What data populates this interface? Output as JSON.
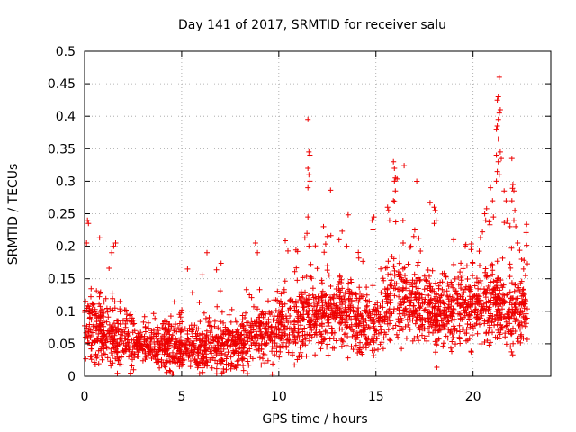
{
  "chart_data": {
    "type": "scatter",
    "title": "Day 141 of 2017, SRMTID for receiver salu",
    "xlabel": "GPS time / hours",
    "ylabel": "SRMTID / TECUs",
    "xlim": [
      0,
      24
    ],
    "ylim": [
      0,
      0.5
    ],
    "xticks": [
      0,
      5,
      10,
      15,
      20
    ],
    "yticks": [
      0,
      0.05,
      0.1,
      0.15,
      0.2,
      0.25,
      0.3,
      0.35,
      0.4,
      0.45,
      0.5
    ],
    "grid": true,
    "legend": "none",
    "marker": "+",
    "color": "#ee0000",
    "x_extent": [
      0,
      22.8
    ],
    "level_profile": [
      {
        "x": 0.0,
        "median": 0.075,
        "spread": 0.045
      },
      {
        "x": 1.0,
        "median": 0.065,
        "spread": 0.04
      },
      {
        "x": 2.0,
        "median": 0.055,
        "spread": 0.035
      },
      {
        "x": 3.0,
        "median": 0.05,
        "spread": 0.03
      },
      {
        "x": 4.0,
        "median": 0.045,
        "spread": 0.03
      },
      {
        "x": 5.0,
        "median": 0.045,
        "spread": 0.03
      },
      {
        "x": 6.0,
        "median": 0.04,
        "spread": 0.03
      },
      {
        "x": 7.0,
        "median": 0.05,
        "spread": 0.035
      },
      {
        "x": 8.0,
        "median": 0.045,
        "spread": 0.03
      },
      {
        "x": 9.0,
        "median": 0.065,
        "spread": 0.04
      },
      {
        "x": 10.0,
        "median": 0.07,
        "spread": 0.04
      },
      {
        "x": 11.0,
        "median": 0.08,
        "spread": 0.045
      },
      {
        "x": 12.0,
        "median": 0.09,
        "spread": 0.045
      },
      {
        "x": 13.0,
        "median": 0.1,
        "spread": 0.045
      },
      {
        "x": 14.0,
        "median": 0.085,
        "spread": 0.045
      },
      {
        "x": 15.0,
        "median": 0.08,
        "spread": 0.045
      },
      {
        "x": 16.0,
        "median": 0.115,
        "spread": 0.05
      },
      {
        "x": 17.0,
        "median": 0.11,
        "spread": 0.05
      },
      {
        "x": 18.0,
        "median": 0.1,
        "spread": 0.045
      },
      {
        "x": 19.0,
        "median": 0.095,
        "spread": 0.045
      },
      {
        "x": 20.0,
        "median": 0.105,
        "spread": 0.05
      },
      {
        "x": 21.0,
        "median": 0.11,
        "spread": 0.055
      },
      {
        "x": 22.0,
        "median": 0.1,
        "spread": 0.05
      },
      {
        "x": 22.8,
        "median": 0.1,
        "spread": 0.045
      }
    ],
    "highlighted_points": [
      {
        "x": 0.15,
        "y": 0.24
      },
      {
        "x": 0.2,
        "y": 0.235
      },
      {
        "x": 0.1,
        "y": 0.205
      },
      {
        "x": 1.5,
        "y": 0.2
      },
      {
        "x": 1.6,
        "y": 0.205
      },
      {
        "x": 1.4,
        "y": 0.19
      },
      {
        "x": 5.3,
        "y": 0.165
      },
      {
        "x": 6.3,
        "y": 0.19
      },
      {
        "x": 8.8,
        "y": 0.205
      },
      {
        "x": 8.9,
        "y": 0.19
      },
      {
        "x": 11.5,
        "y": 0.395
      },
      {
        "x": 11.55,
        "y": 0.345
      },
      {
        "x": 11.6,
        "y": 0.34
      },
      {
        "x": 11.5,
        "y": 0.32
      },
      {
        "x": 11.55,
        "y": 0.31
      },
      {
        "x": 11.6,
        "y": 0.3
      },
      {
        "x": 11.5,
        "y": 0.29
      },
      {
        "x": 11.5,
        "y": 0.245
      },
      {
        "x": 11.45,
        "y": 0.22
      },
      {
        "x": 11.55,
        "y": 0.2
      },
      {
        "x": 14.8,
        "y": 0.24
      },
      {
        "x": 14.9,
        "y": 0.245
      },
      {
        "x": 14.85,
        "y": 0.225
      },
      {
        "x": 15.6,
        "y": 0.26
      },
      {
        "x": 15.65,
        "y": 0.255
      },
      {
        "x": 15.7,
        "y": 0.24
      },
      {
        "x": 15.9,
        "y": 0.33
      },
      {
        "x": 15.95,
        "y": 0.32
      },
      {
        "x": 16.0,
        "y": 0.305
      },
      {
        "x": 15.95,
        "y": 0.3
      },
      {
        "x": 16.0,
        "y": 0.285
      },
      {
        "x": 15.9,
        "y": 0.27
      },
      {
        "x": 17.0,
        "y": 0.225
      },
      {
        "x": 16.95,
        "y": 0.215
      },
      {
        "x": 18.0,
        "y": 0.26
      },
      {
        "x": 18.05,
        "y": 0.255
      },
      {
        "x": 18.1,
        "y": 0.24
      },
      {
        "x": 18.0,
        "y": 0.235
      },
      {
        "x": 20.6,
        "y": 0.25
      },
      {
        "x": 20.65,
        "y": 0.24
      },
      {
        "x": 20.9,
        "y": 0.29
      },
      {
        "x": 21.0,
        "y": 0.27
      },
      {
        "x": 21.05,
        "y": 0.245
      },
      {
        "x": 21.2,
        "y": 0.38
      },
      {
        "x": 21.25,
        "y": 0.385
      },
      {
        "x": 21.3,
        "y": 0.365
      },
      {
        "x": 21.2,
        "y": 0.34
      },
      {
        "x": 21.3,
        "y": 0.33
      },
      {
        "x": 21.25,
        "y": 0.315
      },
      {
        "x": 21.35,
        "y": 0.31
      },
      {
        "x": 21.2,
        "y": 0.3
      },
      {
        "x": 21.35,
        "y": 0.46
      },
      {
        "x": 21.3,
        "y": 0.43
      },
      {
        "x": 21.25,
        "y": 0.425
      },
      {
        "x": 21.4,
        "y": 0.41
      },
      {
        "x": 21.35,
        "y": 0.405
      },
      {
        "x": 21.3,
        "y": 0.395
      },
      {
        "x": 21.4,
        "y": 0.345
      },
      {
        "x": 21.45,
        "y": 0.335
      },
      {
        "x": 21.6,
        "y": 0.285
      },
      {
        "x": 21.7,
        "y": 0.27
      },
      {
        "x": 21.75,
        "y": 0.24
      },
      {
        "x": 21.8,
        "y": 0.235
      },
      {
        "x": 21.9,
        "y": 0.23
      },
      {
        "x": 22.0,
        "y": 0.335
      },
      {
        "x": 22.05,
        "y": 0.295
      },
      {
        "x": 22.1,
        "y": 0.285
      },
      {
        "x": 22.0,
        "y": 0.27
      },
      {
        "x": 22.15,
        "y": 0.255
      },
      {
        "x": 22.1,
        "y": 0.24
      },
      {
        "x": 22.2,
        "y": 0.23
      },
      {
        "x": 22.3,
        "y": 0.205
      },
      {
        "x": 22.5,
        "y": 0.18
      },
      {
        "x": 22.6,
        "y": 0.165
      },
      {
        "x": 22.7,
        "y": 0.155
      },
      {
        "x": 12.3,
        "y": 0.23
      },
      {
        "x": 12.5,
        "y": 0.215
      },
      {
        "x": 13.1,
        "y": 0.21
      },
      {
        "x": 13.5,
        "y": 0.2
      },
      {
        "x": 16.4,
        "y": 0.205
      },
      {
        "x": 16.8,
        "y": 0.2
      },
      {
        "x": 19.0,
        "y": 0.21
      },
      {
        "x": 19.6,
        "y": 0.2
      },
      {
        "x": 19.9,
        "y": 0.195
      }
    ]
  }
}
